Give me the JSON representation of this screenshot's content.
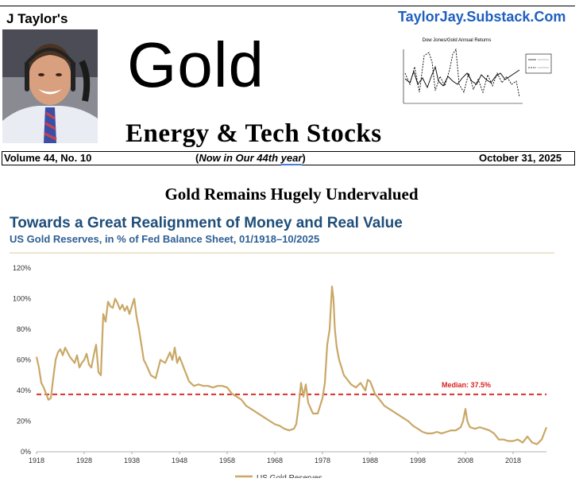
{
  "header": {
    "byline": "J Taylor's",
    "website": "TaylorJay.Substack.Com",
    "title": "Gold",
    "subtitle": "Energy & Tech Stocks"
  },
  "mini_chart": {
    "title": "Dow Jones/Gold Annual Returns",
    "colors": {
      "line": "#000000"
    }
  },
  "info_bar": {
    "volume": "Volume 44, No. 10",
    "paren_open": "(",
    "paren_text": "Now in Our 44th ",
    "paren_year": "year",
    "paren_close": ")",
    "date": "October 31, 2025"
  },
  "article": {
    "headline": "Gold Remains Hugely Undervalued"
  },
  "chart_data": {
    "type": "line",
    "title": "Towards a Great Realignment of Money and Real Value",
    "subtitle": "US Gold Reserves, in % of Fed Balance Sheet, 01/1918–10/2025",
    "xlabel": "",
    "ylabel": "",
    "xlim": [
      1918,
      2025
    ],
    "ylim": [
      0,
      120
    ],
    "x_ticks": [
      "1918",
      "1928",
      "1938",
      "1948",
      "1958",
      "1968",
      "1978",
      "1988",
      "1998",
      "2008",
      "2018"
    ],
    "y_ticks": [
      "0%",
      "20%",
      "40%",
      "60%",
      "80%",
      "100%",
      "120%"
    ],
    "grid": false,
    "legend": "bottom",
    "colors": {
      "series": "#c9a866",
      "median": "#d92020",
      "rule": "#d9c89a"
    },
    "median": {
      "value": 37.5,
      "label": "Median: 37.5%"
    },
    "series": [
      {
        "name": "US Gold Reserves",
        "x": [
          1918,
          1918.5,
          1919,
          1919.5,
          1920,
          1920.5,
          1921,
          1921.5,
          1922,
          1922.5,
          1923,
          1923.5,
          1924,
          1924.5,
          1925,
          1925.5,
          1926,
          1926.5,
          1927,
          1927.5,
          1928,
          1928.5,
          1929,
          1929.5,
          1930,
          1930.5,
          1931,
          1931.5,
          1932,
          1932.5,
          1933,
          1933.5,
          1934,
          1934.5,
          1935,
          1935.5,
          1936,
          1936.5,
          1937,
          1937.5,
          1938,
          1938.5,
          1939,
          1939.5,
          1940,
          1940.5,
          1941,
          1942,
          1943,
          1944,
          1945,
          1946,
          1946.5,
          1947,
          1947.5,
          1948,
          1948.5,
          1949,
          1949.5,
          1950,
          1951,
          1952,
          1953,
          1954,
          1955,
          1956,
          1957,
          1958,
          1959,
          1960,
          1961,
          1962,
          1963,
          1964,
          1965,
          1966,
          1967,
          1968,
          1969,
          1970,
          1971,
          1972,
          1972.5,
          1973,
          1973.5,
          1974,
          1974.5,
          1975,
          1976,
          1977,
          1978,
          1978.5,
          1979,
          1979.5,
          1980,
          1980.3,
          1980.6,
          1981,
          1981.5,
          1982,
          1982.5,
          1983,
          1984,
          1985,
          1986,
          1987,
          1987.5,
          1988,
          1988.5,
          1989,
          1990,
          1991,
          1992,
          1993,
          1994,
          1995,
          1996,
          1997,
          1998,
          1999,
          2000,
          2001,
          2002,
          2003,
          2004,
          2005,
          2006,
          2007,
          2007.5,
          2008,
          2008.4,
          2008.8,
          2009,
          2010,
          2011,
          2012,
          2013,
          2014,
          2015,
          2016,
          2017,
          2018,
          2019,
          2020,
          2021,
          2022,
          2023,
          2024,
          2025
        ],
        "values": [
          62,
          55,
          45,
          42,
          38,
          34,
          35,
          48,
          60,
          65,
          67,
          63,
          68,
          65,
          62,
          60,
          58,
          63,
          55,
          58,
          60,
          64,
          57,
          55,
          63,
          70,
          52,
          50,
          90,
          85,
          98,
          95,
          94,
          100,
          97,
          93,
          96,
          92,
          95,
          90,
          95,
          100,
          88,
          80,
          70,
          60,
          57,
          50,
          48,
          60,
          58,
          65,
          60,
          68,
          58,
          62,
          58,
          54,
          50,
          46,
          43,
          44,
          43,
          43,
          42,
          43,
          43,
          42,
          38,
          36,
          34,
          30,
          28,
          26,
          24,
          22,
          20,
          18,
          17,
          15,
          14,
          15,
          18,
          30,
          45,
          36,
          44,
          32,
          25,
          25,
          35,
          45,
          70,
          80,
          108,
          100,
          80,
          68,
          60,
          55,
          50,
          48,
          44,
          42,
          45,
          40,
          47,
          46,
          42,
          38,
          34,
          30,
          28,
          26,
          24,
          22,
          20,
          17,
          15,
          13,
          12,
          12,
          13,
          12,
          13,
          14,
          14,
          16,
          20,
          28,
          20,
          17,
          16,
          15,
          16,
          15,
          14,
          12,
          8,
          8,
          7,
          7,
          8,
          6,
          10,
          6,
          5,
          8,
          16
        ]
      }
    ]
  }
}
